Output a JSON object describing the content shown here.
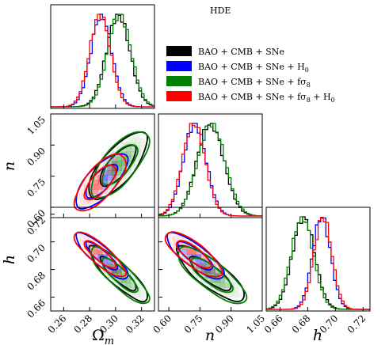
{
  "chart_data": {
    "type": "corner",
    "title": "HDE",
    "parameters": [
      {
        "key": "Om",
        "label": "Ωm",
        "label_main": "Ω",
        "label_sub": "m",
        "range": [
          0.25,
          0.33
        ],
        "ticks": [
          "0.26",
          "0.28",
          "0.30",
          "0.32"
        ],
        "tick_values": [
          0.26,
          0.28,
          0.3,
          0.32
        ]
      },
      {
        "key": "n",
        "label": "n",
        "range": [
          0.55,
          1.05
        ],
        "ticks": [
          "0.60",
          "0.75",
          "0.90",
          "1.05"
        ],
        "tick_values": [
          0.6,
          0.75,
          0.9,
          1.05
        ]
      },
      {
        "key": "h",
        "label": "h",
        "range": [
          0.65,
          0.725
        ],
        "ticks": [
          "0.66",
          "0.68",
          "0.70",
          "0.72"
        ],
        "tick_values": [
          0.66,
          0.68,
          0.7,
          0.72
        ]
      }
    ],
    "series": [
      {
        "name": "BAO + CMB + SNe",
        "color": "#000000",
        "mean": {
          "Om": 0.302,
          "n": 0.8,
          "h": 0.677
        },
        "sigma": {
          "Om": 0.009,
          "n": 0.065,
          "h": 0.008
        },
        "corr": {
          "Om_n": 0.72,
          "Om_h": -0.85,
          "n_h": -0.8
        }
      },
      {
        "name": "BAO + CMB + SNe + H0",
        "color": "#0000ff",
        "mean": {
          "Om": 0.289,
          "n": 0.725,
          "h": 0.69
        },
        "sigma": {
          "Om": 0.008,
          "n": 0.055,
          "h": 0.0065
        },
        "corr": {
          "Om_n": 0.72,
          "Om_h": -0.85,
          "n_h": -0.8
        }
      },
      {
        "name": "BAO + CMB + SNe + fσ8",
        "color": "#008000",
        "mean": {
          "Om": 0.303,
          "n": 0.805,
          "h": 0.676
        },
        "sigma": {
          "Om": 0.009,
          "n": 0.066,
          "h": 0.008
        },
        "corr": {
          "Om_n": 0.72,
          "Om_h": -0.85,
          "n_h": -0.8
        }
      },
      {
        "name": "BAO + CMB + SNe + fσ8 + H0",
        "color": "#ff0000",
        "mean": {
          "Om": 0.288,
          "n": 0.72,
          "h": 0.691
        },
        "sigma": {
          "Om": 0.008,
          "n": 0.055,
          "h": 0.0065
        },
        "corr": {
          "Om_n": 0.72,
          "Om_h": -0.85,
          "n_h": -0.8
        }
      }
    ],
    "legend": {
      "placement": "top-right",
      "entries": [
        {
          "text": "BAO + CMB + SNe",
          "color": "#000000"
        },
        {
          "text": "BAO + CMB + SNe + H",
          "sub": "0",
          "color": "#0000ff"
        },
        {
          "text": "BAO + CMB + SNe + fσ",
          "sub": "8",
          "color": "#008000"
        },
        {
          "text": "BAO + CMB + SNe + fσ",
          "sub": "8",
          "tail": " + H",
          "tailsub": "0",
          "color": "#ff0000"
        }
      ]
    },
    "grid": false
  }
}
